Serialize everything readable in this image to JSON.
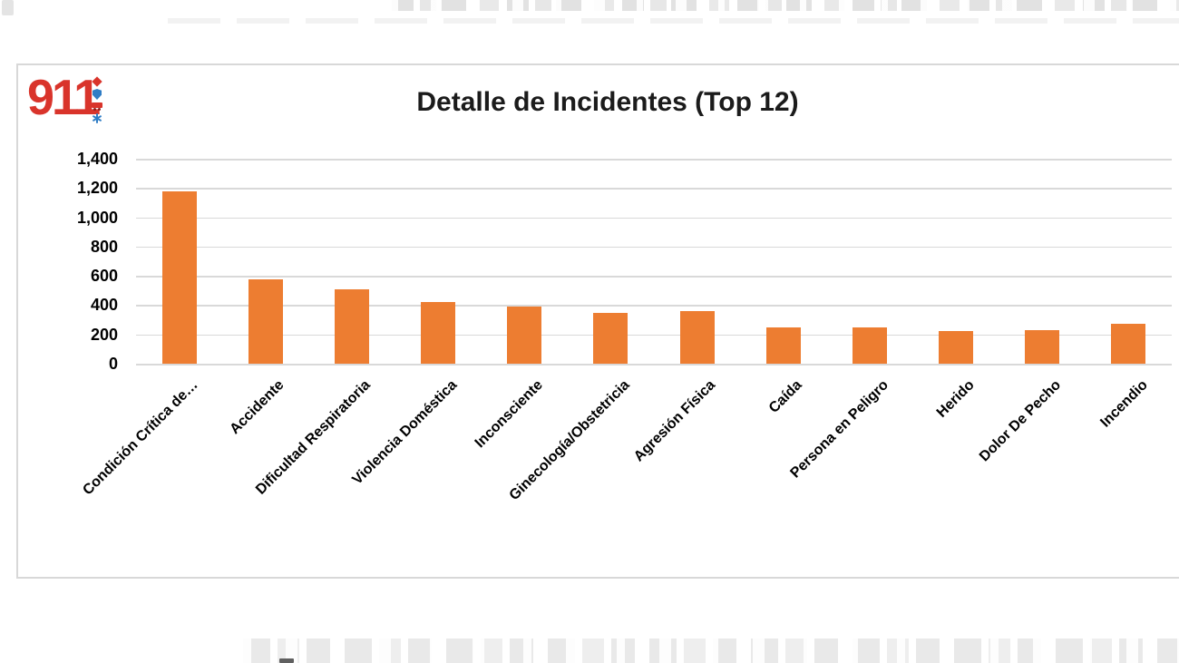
{
  "window": {
    "background": "#ffffff"
  },
  "logo": {
    "text": "911",
    "color": "#d9342b",
    "icon_blue": "#2f7dc5",
    "icon_red": "#d9342b",
    "wheel_color": "#8e201b",
    "icons": [
      "diamond-icon",
      "shield-icon",
      "ambulance-icon",
      "star-of-life-icon"
    ]
  },
  "chart_data": {
    "type": "bar",
    "title": "Detalle de Incidentes (Top 12)",
    "categories": [
      "Condición Crítica de…",
      "Accidente",
      "Dificultad Respiratoria",
      "Violencia Doméstica",
      "Inconsciente",
      "Ginecología/Obstetricia",
      "Agresión Física",
      "Caída",
      "Persona en Peligro",
      "Herido",
      "Dolor De Pecho",
      "Incendio"
    ],
    "values": [
      1180,
      575,
      505,
      420,
      390,
      350,
      360,
      250,
      245,
      220,
      230,
      275
    ],
    "bar_color": "#ED7D31",
    "ylim": [
      0,
      1400
    ],
    "ytick_step": 200,
    "ytick_labels": [
      "0",
      "200",
      "400",
      "600",
      "800",
      "1,000",
      "1,200",
      "1,400"
    ],
    "grid": true,
    "gridline_color": "#D9D9D9",
    "legend": "none",
    "xlabel": "",
    "ylabel": "",
    "x_label_rotation_deg": 45
  }
}
